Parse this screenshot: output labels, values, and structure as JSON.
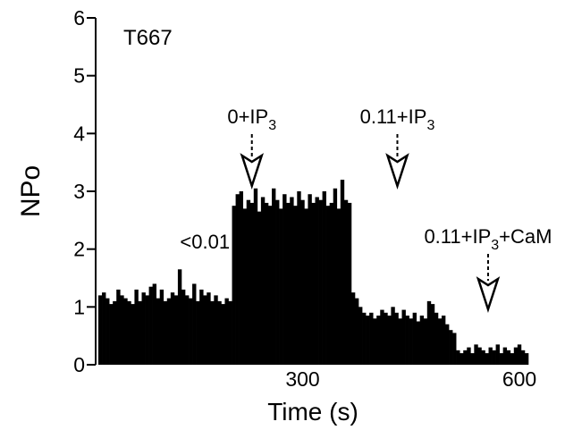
{
  "chart_data": {
    "type": "bar",
    "panel_label": "T667",
    "xlabel": "Time (s)",
    "ylabel": "NPo",
    "xlim": [
      0,
      600
    ],
    "ylim": [
      0,
      6
    ],
    "x_ticks": [
      "300",
      "600"
    ],
    "y_ticks": [
      "0",
      "1",
      "2",
      "3",
      "4",
      "5",
      "6"
    ],
    "bin_width_s": 5,
    "grid": false,
    "legend": "none",
    "annotations": [
      {
        "text_main": "<0.01",
        "text_sub": "",
        "text_after": "",
        "x": 30,
        "arrow": false
      },
      {
        "text_main": "0+IP",
        "text_sub": "3",
        "text_after": "",
        "x": 184,
        "arrow": true
      },
      {
        "text_main": "0.11+IP",
        "text_sub": "3",
        "text_after": "",
        "x": 394,
        "arrow": true
      },
      {
        "text_main": "0.11+IP",
        "text_sub": "3",
        "text_after": "+CaM",
        "x": 595,
        "arrow": true
      }
    ],
    "x": [
      5,
      10,
      15,
      20,
      25,
      30,
      35,
      40,
      45,
      50,
      55,
      60,
      65,
      70,
      75,
      80,
      85,
      90,
      95,
      100,
      105,
      110,
      115,
      120,
      125,
      130,
      135,
      140,
      145,
      150,
      155,
      160,
      165,
      170,
      175,
      180,
      185,
      190,
      195,
      200,
      205,
      210,
      215,
      220,
      225,
      230,
      235,
      240,
      245,
      250,
      255,
      260,
      265,
      270,
      275,
      280,
      285,
      290,
      295,
      300,
      305,
      310,
      315,
      320,
      325,
      330,
      335,
      340,
      345,
      350,
      355,
      360,
      365,
      370,
      375,
      380,
      385,
      390,
      395,
      400,
      405,
      410,
      415,
      420,
      425,
      430,
      435,
      440,
      445,
      450,
      455,
      460,
      465,
      470,
      475,
      480,
      485,
      490,
      495,
      500,
      505,
      510,
      515,
      520,
      525,
      530,
      535,
      540,
      545,
      550,
      555,
      560,
      565,
      570,
      575,
      580,
      585,
      590,
      595
    ],
    "values": [
      1.2,
      1.25,
      1.15,
      1.05,
      1.1,
      1.3,
      1.2,
      1.15,
      1.1,
      1.05,
      1.3,
      1.1,
      1.25,
      1.2,
      1.35,
      1.4,
      1.15,
      1.3,
      1.1,
      1.15,
      1.25,
      1.2,
      1.65,
      1.3,
      1.2,
      1.15,
      1.4,
      1.1,
      1.3,
      1.2,
      1.25,
      1.1,
      1.2,
      1.1,
      1.05,
      1.15,
      1.1,
      2.75,
      2.95,
      3.0,
      2.7,
      2.85,
      2.8,
      3.05,
      2.65,
      2.9,
      2.8,
      2.75,
      3.05,
      2.85,
      2.7,
      2.95,
      2.8,
      2.9,
      2.75,
      3.0,
      2.85,
      2.7,
      2.95,
      2.8,
      2.9,
      2.85,
      3.0,
      2.75,
      2.8,
      3.05,
      2.7,
      3.2,
      2.85,
      2.8,
      1.25,
      1.15,
      1.0,
      0.9,
      0.85,
      0.9,
      0.8,
      0.85,
      0.95,
      0.9,
      0.85,
      1.0,
      0.9,
      0.8,
      0.95,
      0.85,
      0.8,
      0.9,
      0.75,
      0.85,
      0.8,
      1.1,
      1.05,
      0.9,
      0.8,
      0.85,
      0.7,
      0.6,
      0.55,
      0.25,
      0.2,
      0.25,
      0.3,
      0.2,
      0.35,
      0.3,
      0.25,
      0.2,
      0.3,
      0.25,
      0.35,
      0.2,
      0.3,
      0.25,
      0.2,
      0.3,
      0.35,
      0.25,
      0.2
    ]
  }
}
